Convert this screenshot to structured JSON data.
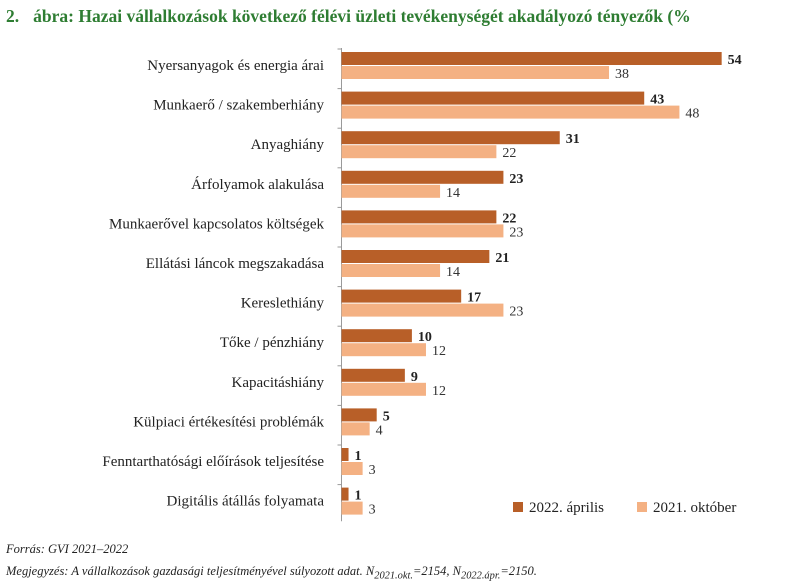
{
  "figure": {
    "number": "2.",
    "title": "ábra: Hazai vállalkozások következő félévi üzleti tevékenységét akadályozó tényezők (%",
    "source": "Forrás: GVI 2021–2022",
    "remark_html": "Megjegyzés: A vállalkozások gazdasági teljesítményével súlyozott adat. N<sub>2021.okt.</sub>=2154, N<sub>2022.ápr.</sub>=2150."
  },
  "chart_data": {
    "type": "bar",
    "orientation": "horizontal",
    "categories": [
      "Nyersanyagok és energia árai",
      "Munkaerő / szakemberhiány",
      "Anyaghiány",
      "Árfolyamok alakulása",
      "Munkaerővel kapcsolatos költségek",
      "Ellátási láncok megszakadása",
      "Kereslethiány",
      "Tőke / pénzhiány",
      "Kapacitáshiány",
      "Külpiaci értékesítési problémák",
      "Fenntarthatósági előírások teljesítése",
      "Digitális átállás folyamata"
    ],
    "series": [
      {
        "name": "2022. április",
        "color": "#b85f28",
        "values": [
          54,
          43,
          31,
          23,
          22,
          21,
          17,
          10,
          9,
          5,
          1,
          1
        ]
      },
      {
        "name": "2021. október",
        "color": "#f4b183",
        "values": [
          38,
          48,
          22,
          14,
          23,
          14,
          23,
          12,
          12,
          4,
          3,
          3
        ]
      }
    ],
    "xlim": [
      0,
      55
    ],
    "grid": false,
    "legend_position": "bottom-right",
    "title": "",
    "xlabel": "",
    "ylabel": ""
  }
}
